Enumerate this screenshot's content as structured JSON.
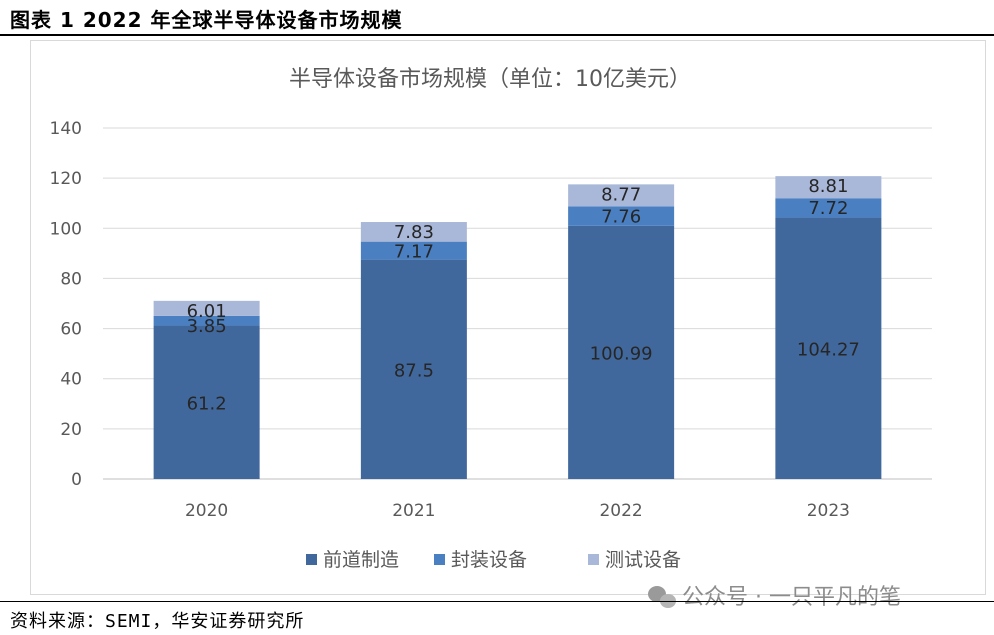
{
  "figure_title": "图表 1 2022 年全球半导体设备市场规模",
  "source": "资料来源：SEMI，华安证券研究所",
  "watermark": "公众号 · 一只平凡的笔",
  "chart_data": {
    "type": "bar",
    "stacked": true,
    "title": "半导体设备市场规模（单位：10亿美元）",
    "xlabel": "",
    "ylabel": "",
    "categories": [
      "2020",
      "2021",
      "2022",
      "2023"
    ],
    "ylim": [
      0,
      140
    ],
    "yticks": [
      0,
      20,
      40,
      60,
      80,
      100,
      120,
      140
    ],
    "grid": true,
    "legend_position": "bottom",
    "series": [
      {
        "name": "前道制造",
        "values": [
          61.2,
          87.5,
          100.99,
          104.27
        ],
        "labels": [
          "61.2",
          "87.5",
          "100.99",
          "104.27"
        ],
        "color": "#41689c"
      },
      {
        "name": "封装设备",
        "values": [
          3.85,
          7.17,
          7.76,
          7.72
        ],
        "labels": [
          "3.85",
          "7.17",
          "7.76",
          "7.72"
        ],
        "color": "#4a7fc1"
      },
      {
        "name": "测试设备",
        "values": [
          6.01,
          7.83,
          8.77,
          8.81
        ],
        "labels": [
          "6.01",
          "7.83",
          "8.77",
          "8.81"
        ],
        "color": "#a9b8d8"
      }
    ]
  }
}
